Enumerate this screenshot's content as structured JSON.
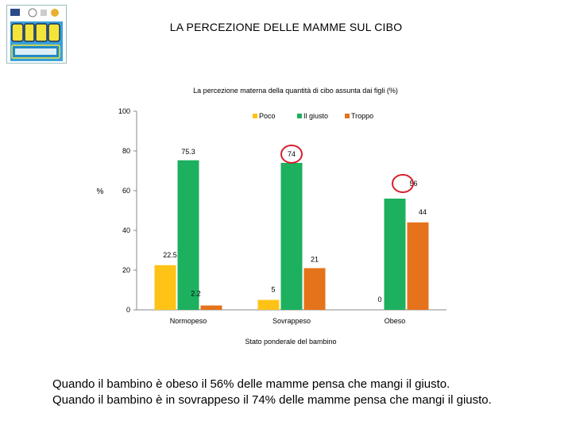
{
  "page_title": "LA PERCEZIONE DELLE MAMME SUL CIBO",
  "chart_data": {
    "type": "bar",
    "title": "La percezione materna della quantità di cibo assunta dai figli (%)",
    "ylabel": "%",
    "xlabel": "Stato ponderale  del bambino",
    "ylim": [
      0,
      100
    ],
    "yticks": [
      "0",
      "20",
      "40",
      "60",
      "80",
      "100"
    ],
    "categories": [
      "Normopeso",
      "Sovrappeso",
      "Obeso"
    ],
    "legend_position": "top-right",
    "series": [
      {
        "name": "Poco",
        "color": "#fec316",
        "values": [
          22.5,
          5,
          0
        ],
        "labels": [
          "22.5",
          "5",
          "0"
        ]
      },
      {
        "name": "Il giusto",
        "color": "#1db05e",
        "values": [
          75.3,
          74,
          56
        ],
        "labels": [
          "75.3",
          "74",
          "56"
        ]
      },
      {
        "name": "Troppo",
        "color": "#e4731c",
        "values": [
          2.2,
          21,
          44
        ],
        "labels": [
          "2.2",
          "21",
          "44"
        ]
      }
    ],
    "highlight_color": "#d81e2c"
  },
  "footer": {
    "line1": "Quando il bambino è obeso il 56% delle mamme pensa che mangi il giusto.",
    "line2": "Quando il bambino è in sovrappeso il 74% delle mamme pensa che mangi il giusto."
  }
}
